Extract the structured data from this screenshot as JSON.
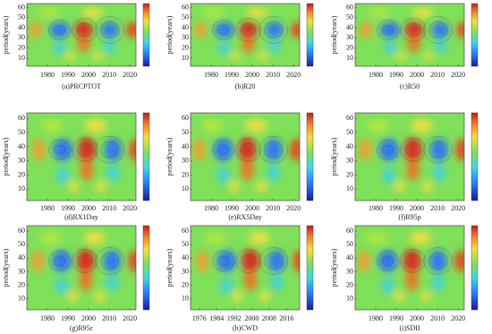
{
  "chart_data": [
    {
      "type": "contour",
      "title": "(a)PRCPTOT",
      "ylabel": "period(years)",
      "xlim": [
        1970,
        2023
      ],
      "xticks": [
        1980,
        1990,
        2000,
        2010,
        2020
      ],
      "ylim": [
        2,
        64
      ],
      "yticks": [
        10,
        20,
        30,
        40,
        50,
        60
      ]
    },
    {
      "type": "contour",
      "title": "(b)R20",
      "ylabel": "period(years)",
      "xlim": [
        1970,
        2023
      ],
      "xticks": [
        1980,
        1990,
        2000,
        2010,
        2020
      ],
      "ylim": [
        2,
        64
      ],
      "yticks": [
        10,
        20,
        30,
        40,
        50,
        60
      ]
    },
    {
      "type": "contour",
      "title": "(c)R50",
      "ylabel": "period(years)",
      "xlim": [
        1970,
        2023
      ],
      "xticks": [
        1980,
        1990,
        2000,
        2010,
        2020
      ],
      "ylim": [
        2,
        64
      ],
      "yticks": [
        10,
        20,
        30,
        40,
        50,
        60
      ]
    },
    {
      "type": "contour",
      "title": "(d)RX1Day",
      "ylabel": "period(years)",
      "xlim": [
        1970,
        2023
      ],
      "xticks": [
        1980,
        1990,
        2000,
        2010,
        2020
      ],
      "ylim": [
        2,
        64
      ],
      "yticks": [
        10,
        20,
        30,
        40,
        50,
        60
      ]
    },
    {
      "type": "contour",
      "title": "(e)RX5Day",
      "ylabel": "period(years)",
      "xlim": [
        1970,
        2023
      ],
      "xticks": [
        1980,
        1990,
        2000,
        2010,
        2020
      ],
      "ylim": [
        2,
        64
      ],
      "yticks": [
        10,
        20,
        30,
        40,
        50,
        60
      ]
    },
    {
      "type": "contour",
      "title": "(f)R95p",
      "ylabel": "period(years)",
      "xlim": [
        1970,
        2023
      ],
      "xticks": [
        1980,
        1990,
        2000,
        2010,
        2020
      ],
      "ylim": [
        2,
        64
      ],
      "yticks": [
        10,
        20,
        30,
        40,
        50,
        60
      ]
    },
    {
      "type": "contour",
      "title": "(g)R95c",
      "ylabel": "period(years)",
      "xlim": [
        1970,
        2023
      ],
      "xticks": [
        1980,
        1990,
        2000,
        2010,
        2020
      ],
      "ylim": [
        2,
        64
      ],
      "yticks": [
        10,
        20,
        30,
        40,
        50,
        60
      ]
    },
    {
      "type": "contour",
      "title": "(h)CWD",
      "ylabel": "period(years)",
      "xlim": [
        1972,
        2022
      ],
      "xticks": [
        1976,
        1984,
        1992,
        2000,
        2008,
        2016
      ],
      "ylim": [
        2,
        64
      ],
      "yticks": [
        10,
        20,
        30,
        40,
        50,
        60
      ]
    },
    {
      "type": "contour",
      "title": "(i)SDII",
      "ylabel": "period(years)",
      "xlim": [
        1970,
        2023
      ],
      "xticks": [
        1980,
        1990,
        2000,
        2010,
        2020
      ],
      "ylim": [
        2,
        64
      ],
      "yticks": [
        10,
        20,
        30,
        40,
        50,
        60
      ]
    }
  ]
}
